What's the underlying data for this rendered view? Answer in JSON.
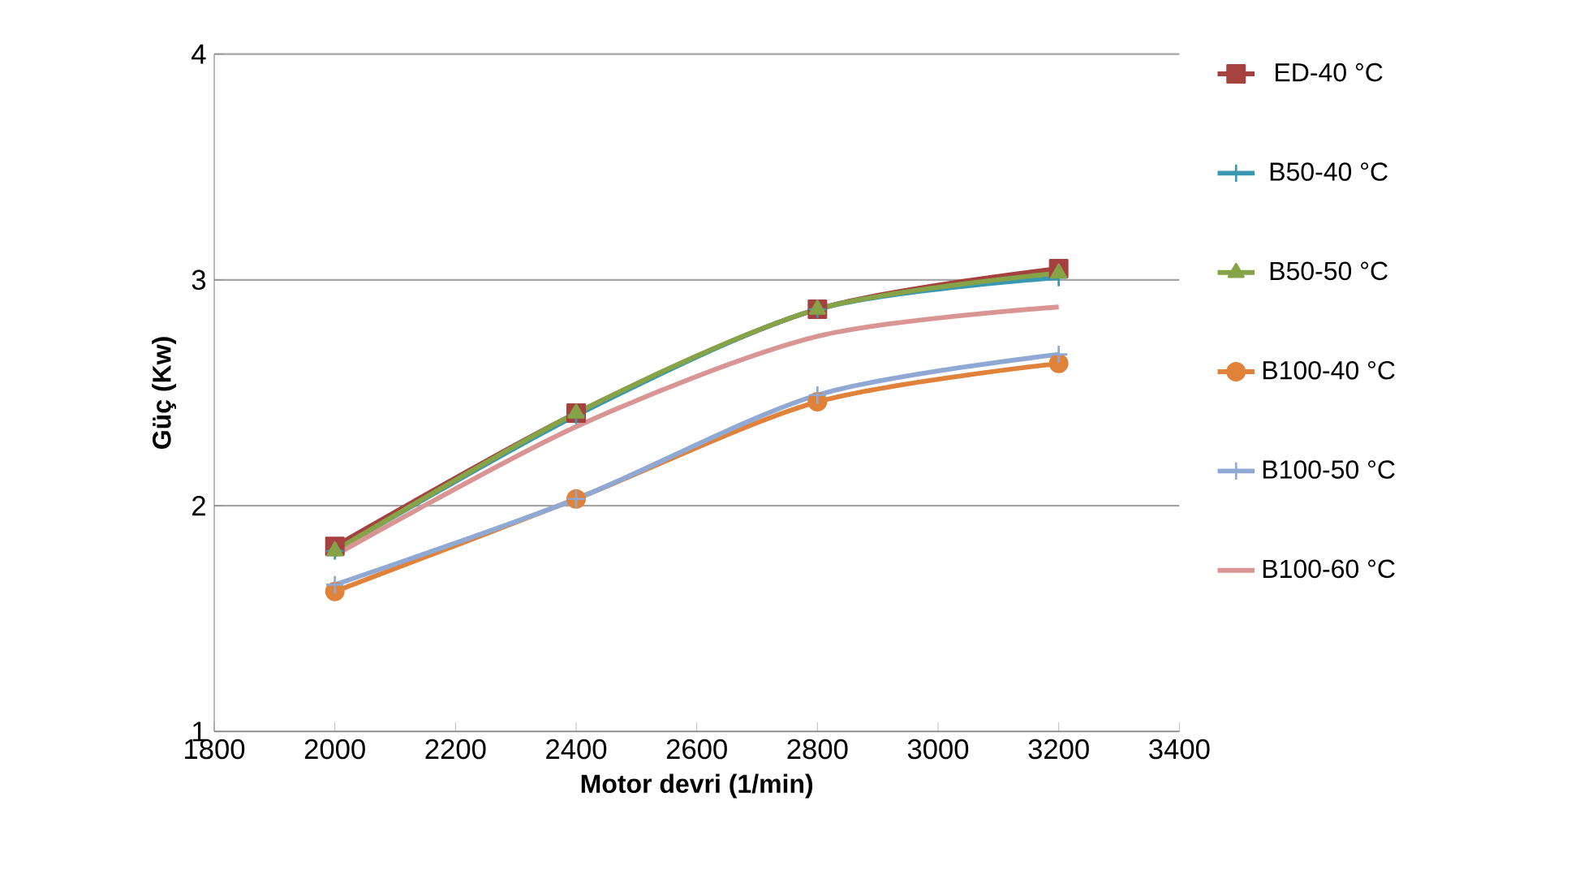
{
  "chart_data": {
    "type": "line",
    "xlabel": "Motor devri (1/min)",
    "ylabel": "Güç (Kw)",
    "x": [
      2000,
      2400,
      2800,
      3200
    ],
    "xlim": [
      1800,
      3400
    ],
    "xticks": [
      1800,
      2000,
      2200,
      2400,
      2600,
      2800,
      3000,
      3200,
      3400
    ],
    "ylim": [
      1,
      4
    ],
    "yticks": [
      1,
      2,
      3,
      4
    ],
    "grid": "y",
    "legend": "right",
    "series": [
      {
        "name": "ED-40 °C",
        "color": "#a5413f",
        "marker": "square",
        "values": [
          1.82,
          2.41,
          2.87,
          3.05
        ]
      },
      {
        "name": "B50-40 °C",
        "color": "#3a97b0",
        "marker": "cross",
        "values": [
          1.8,
          2.4,
          2.87,
          3.01
        ]
      },
      {
        "name": "B50-50 °C",
        "color": "#86a447",
        "marker": "triangle",
        "values": [
          1.8,
          2.41,
          2.87,
          3.03
        ]
      },
      {
        "name": "B100-40 °C",
        "color": "#e0823a",
        "marker": "circle",
        "values": [
          1.62,
          2.03,
          2.46,
          2.63
        ]
      },
      {
        "name": "B100-50 °C",
        "color": "#8fa9d4",
        "marker": "cross",
        "values": [
          1.65,
          2.03,
          2.49,
          2.67
        ]
      },
      {
        "name": "B100-60 °C",
        "color": "#d99593",
        "marker": "none",
        "values": [
          1.78,
          2.35,
          2.75,
          2.88
        ]
      }
    ]
  }
}
